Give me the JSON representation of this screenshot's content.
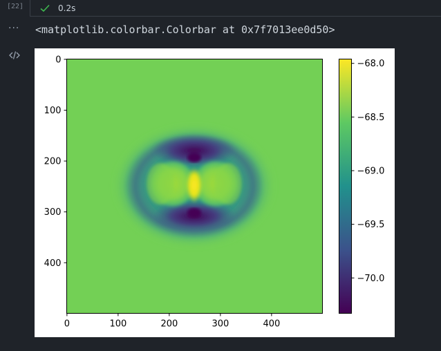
{
  "cell": {
    "execution_count": "[22]",
    "status_icon": "check-icon",
    "execution_time": "0.2s",
    "output_repr": "<matplotlib.colorbar.Colorbar at 0x7f7013ee0d50>"
  },
  "colors": {
    "background": "#1f2329",
    "status_ok": "#3fb950",
    "colormap": "viridis"
  },
  "chart_data": {
    "type": "heatmap",
    "title": "",
    "xlabel": "",
    "ylabel": "",
    "x_ticks": [
      "0",
      "100",
      "200",
      "300",
      "400"
    ],
    "y_ticks": [
      "0",
      "100",
      "200",
      "300",
      "400"
    ],
    "xlim": [
      -0.5,
      499.5
    ],
    "ylim": [
      499.5,
      -0.5
    ],
    "colorbar": {
      "ticks": [
        "−68.0",
        "−68.5",
        "−69.0",
        "−69.5",
        "−70.0"
      ],
      "vmin": -70.33,
      "vmax": -67.96
    },
    "field": {
      "background_value": -68.65,
      "center": [
        250,
        250
      ],
      "features": "bright central vertical streak near -67.97, yellow-green inner lobes left and right of center, dark purple arcs above and below center around -70.3, teal outer ring fading to background near radius 120"
    }
  }
}
